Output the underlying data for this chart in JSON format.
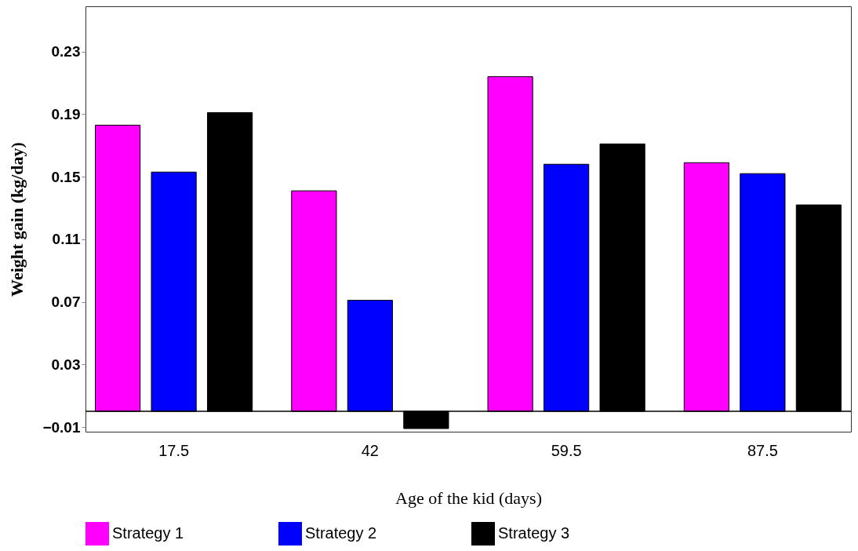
{
  "chart_data": {
    "type": "bar",
    "xlabel": "Age of the kid (days)",
    "ylabel": "Weight gain (kg/day)",
    "categories": [
      "17.5",
      "42",
      "59.5",
      "87.5"
    ],
    "series": [
      {
        "name": "Strategy 1",
        "color": "#ff00ff",
        "values": [
          0.183,
          0.141,
          0.214,
          0.159
        ]
      },
      {
        "name": "Strategy 2",
        "color": "#0000ff",
        "values": [
          0.153,
          0.071,
          0.158,
          0.152
        ]
      },
      {
        "name": "Strategy 3",
        "color": "#000000",
        "values": [
          0.191,
          -0.011,
          0.171,
          0.132
        ]
      }
    ],
    "ylim": [
      -0.013,
      0.259
    ],
    "yticks": [
      -0.01,
      0.03,
      0.07,
      0.11,
      0.15,
      0.19,
      0.23
    ],
    "ref_lines": [
      {
        "axis": "y",
        "value": 0
      }
    ],
    "grid": false,
    "legend": "bottom"
  }
}
